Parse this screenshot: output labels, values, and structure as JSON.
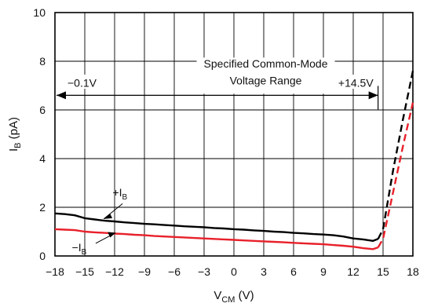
{
  "chart_data": {
    "type": "line",
    "xlabel": {
      "main": "V",
      "sub": "CM",
      "unit": " (V)"
    },
    "ylabel": {
      "main": "I",
      "sub": "B",
      "unit": " (pA)"
    },
    "xlim": [
      -18,
      18
    ],
    "ylim": [
      0,
      10
    ],
    "x_ticks": [
      -18,
      -15,
      -12,
      -9,
      -6,
      -3,
      0,
      3,
      6,
      9,
      12,
      15,
      18
    ],
    "y_ticks": [
      0,
      2,
      4,
      6,
      8,
      10
    ],
    "grid": true,
    "series": [
      {
        "name": "+IB",
        "color": "#000000",
        "solid": [
          [
            -18,
            1.75
          ],
          [
            -17,
            1.72
          ],
          [
            -16,
            1.67
          ],
          [
            -15,
            1.55
          ],
          [
            -14,
            1.5
          ],
          [
            -13,
            1.45
          ],
          [
            -12,
            1.42
          ],
          [
            -11,
            1.38
          ],
          [
            -10,
            1.35
          ],
          [
            -9,
            1.32
          ],
          [
            -8,
            1.3
          ],
          [
            -7,
            1.27
          ],
          [
            -6,
            1.25
          ],
          [
            -5,
            1.22
          ],
          [
            -4,
            1.2
          ],
          [
            -3,
            1.18
          ],
          [
            -2,
            1.15
          ],
          [
            -1,
            1.13
          ],
          [
            0,
            1.1
          ],
          [
            1,
            1.08
          ],
          [
            2,
            1.05
          ],
          [
            3,
            1.03
          ],
          [
            4,
            1.0
          ],
          [
            5,
            0.98
          ],
          [
            6,
            0.95
          ],
          [
            7,
            0.93
          ],
          [
            8,
            0.9
          ],
          [
            9,
            0.88
          ],
          [
            10,
            0.85
          ],
          [
            11,
            0.8
          ],
          [
            12,
            0.72
          ],
          [
            13,
            0.68
          ],
          [
            14,
            0.62
          ],
          [
            14.5,
            0.7
          ]
        ],
        "dashed": [
          [
            14.5,
            0.7
          ],
          [
            15,
            1.1
          ],
          [
            16,
            3.5
          ],
          [
            17,
            5.6
          ],
          [
            18,
            7.6
          ]
        ]
      },
      {
        "name": "-IB",
        "color": "#e8202a",
        "solid": [
          [
            -18,
            1.1
          ],
          [
            -17,
            1.08
          ],
          [
            -16,
            1.06
          ],
          [
            -15,
            1.0
          ],
          [
            -14,
            0.97
          ],
          [
            -13,
            0.95
          ],
          [
            -12,
            0.92
          ],
          [
            -11,
            0.9
          ],
          [
            -10,
            0.87
          ],
          [
            -9,
            0.85
          ],
          [
            -8,
            0.82
          ],
          [
            -7,
            0.8
          ],
          [
            -6,
            0.78
          ],
          [
            -5,
            0.76
          ],
          [
            -4,
            0.74
          ],
          [
            -3,
            0.72
          ],
          [
            -2,
            0.7
          ],
          [
            -1,
            0.68
          ],
          [
            0,
            0.66
          ],
          [
            1,
            0.64
          ],
          [
            2,
            0.62
          ],
          [
            3,
            0.6
          ],
          [
            4,
            0.58
          ],
          [
            5,
            0.56
          ],
          [
            6,
            0.54
          ],
          [
            7,
            0.52
          ],
          [
            8,
            0.5
          ],
          [
            9,
            0.48
          ],
          [
            10,
            0.45
          ],
          [
            11,
            0.42
          ],
          [
            12,
            0.38
          ],
          [
            13,
            0.32
          ],
          [
            14,
            0.28
          ],
          [
            14.5,
            0.35
          ]
        ],
        "dashed": [
          [
            14.5,
            0.35
          ],
          [
            15,
            0.7
          ],
          [
            16,
            2.6
          ],
          [
            17,
            4.5
          ],
          [
            18,
            6.3
          ]
        ]
      }
    ],
    "annotations": {
      "range_title_line1": "Specified Common-Mode",
      "range_title_line2": "Voltage Range",
      "range_left": "−0.1V",
      "range_right": "+14.5V",
      "range_x": [
        -0.1,
        14.5
      ],
      "range_y": 6.6,
      "plus_label_main": "+I",
      "plus_label_sub": "B",
      "minus_label_main": "−I",
      "minus_label_sub": "B"
    }
  }
}
